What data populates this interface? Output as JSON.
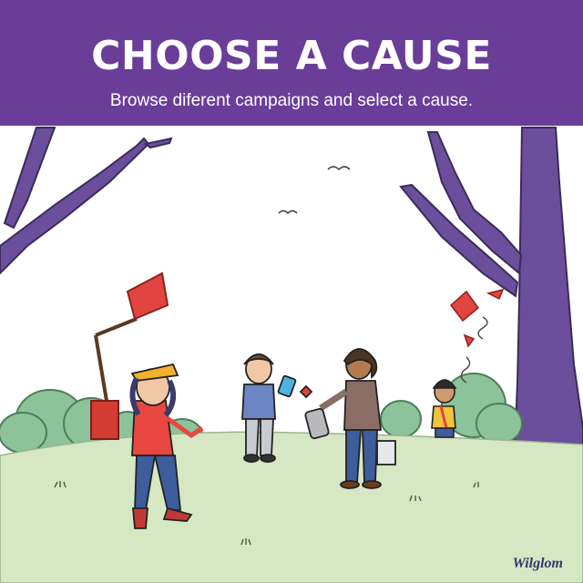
{
  "header": {
    "title": "CHOOSE A CAUSE",
    "subtitle": "Browse diferent campaigns and select a cause."
  },
  "signature": "Wilglom",
  "colors": {
    "header_bg": "#6a3d99",
    "tree_purple": "#6b4f9c",
    "grass": "#d6e7c4",
    "bush": "#8cc39a",
    "flag_red": "#e2453f"
  }
}
